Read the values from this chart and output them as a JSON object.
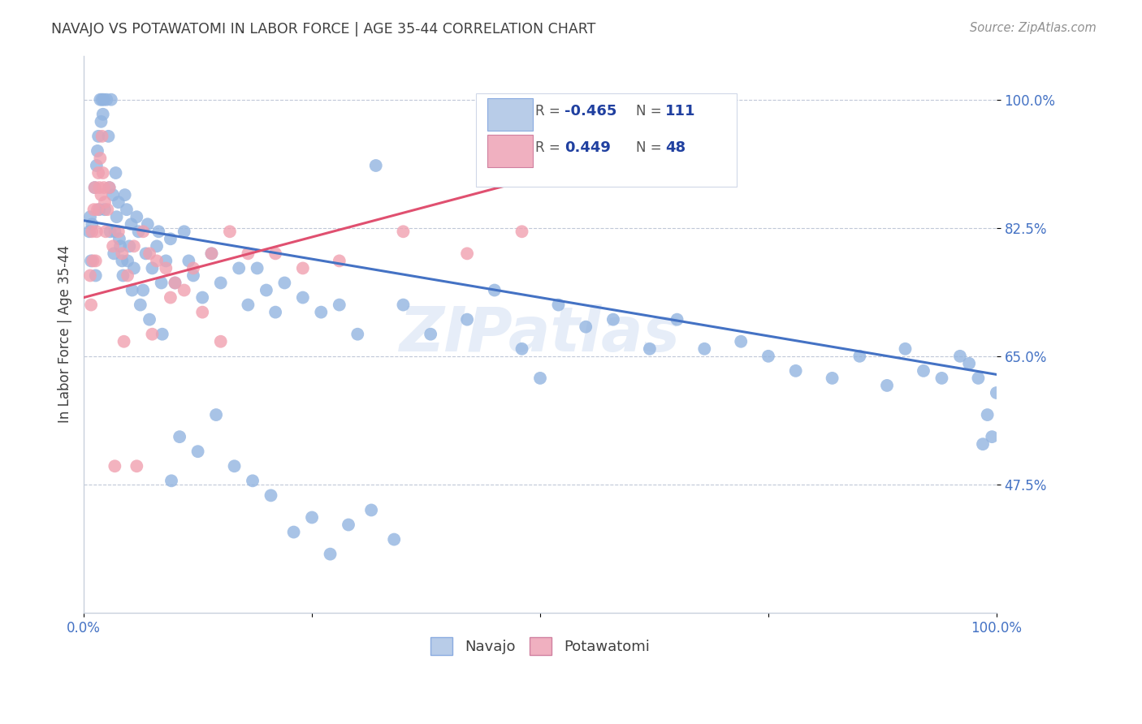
{
  "title": "NAVAJO VS POTAWATOMI IN LABOR FORCE | AGE 35-44 CORRELATION CHART",
  "source": "Source: ZipAtlas.com",
  "ylabel": "In Labor Force | Age 35-44",
  "xlim": [
    0.0,
    1.0
  ],
  "ylim": [
    0.3,
    1.06
  ],
  "ytick_positions": [
    0.475,
    0.65,
    0.825,
    1.0
  ],
  "ytick_labels": [
    "47.5%",
    "65.0%",
    "82.5%",
    "100.0%"
  ],
  "navajo_color": "#92b4e0",
  "potawatomi_color": "#f0a0b0",
  "navajo_line_color": "#4472c4",
  "potawatomi_line_color": "#e05070",
  "title_color": "#404040",
  "axis_label_color": "#4472c4",
  "watermark": "ZIPatlas",
  "navajo_x": [
    0.009,
    0.012,
    0.014,
    0.015,
    0.016,
    0.018,
    0.019,
    0.02,
    0.021,
    0.022,
    0.023,
    0.025,
    0.027,
    0.028,
    0.03,
    0.032,
    0.034,
    0.035,
    0.036,
    0.038,
    0.04,
    0.042,
    0.045,
    0.047,
    0.05,
    0.052,
    0.055,
    0.058,
    0.06,
    0.065,
    0.068,
    0.07,
    0.075,
    0.08,
    0.082,
    0.085,
    0.09,
    0.095,
    0.1,
    0.11,
    0.115,
    0.12,
    0.13,
    0.14,
    0.15,
    0.17,
    0.18,
    0.19,
    0.2,
    0.21,
    0.22,
    0.24,
    0.26,
    0.28,
    0.3,
    0.32,
    0.35,
    0.38,
    0.42,
    0.45,
    0.48,
    0.5,
    0.52,
    0.55,
    0.58,
    0.62,
    0.65,
    0.68,
    0.72,
    0.75,
    0.78,
    0.82,
    0.85,
    0.88,
    0.9,
    0.92,
    0.94,
    0.96,
    0.97,
    0.98,
    0.985,
    0.99,
    0.995,
    1.0,
    0.006,
    0.007,
    0.008,
    0.013,
    0.017,
    0.029,
    0.033,
    0.039,
    0.043,
    0.048,
    0.053,
    0.062,
    0.072,
    0.086,
    0.096,
    0.105,
    0.125,
    0.145,
    0.165,
    0.185,
    0.205,
    0.23,
    0.25,
    0.27,
    0.29,
    0.315,
    0.34
  ],
  "navajo_y": [
    0.83,
    0.88,
    0.91,
    0.93,
    0.95,
    1.0,
    0.97,
    1.0,
    0.98,
    1.0,
    0.85,
    1.0,
    0.95,
    0.88,
    1.0,
    0.87,
    0.82,
    0.9,
    0.84,
    0.86,
    0.8,
    0.78,
    0.87,
    0.85,
    0.8,
    0.83,
    0.77,
    0.84,
    0.82,
    0.74,
    0.79,
    0.83,
    0.77,
    0.8,
    0.82,
    0.75,
    0.78,
    0.81,
    0.75,
    0.82,
    0.78,
    0.76,
    0.73,
    0.79,
    0.75,
    0.77,
    0.72,
    0.77,
    0.74,
    0.71,
    0.75,
    0.73,
    0.71,
    0.72,
    0.68,
    0.91,
    0.72,
    0.68,
    0.7,
    0.74,
    0.66,
    0.62,
    0.72,
    0.69,
    0.7,
    0.66,
    0.7,
    0.66,
    0.67,
    0.65,
    0.63,
    0.62,
    0.65,
    0.61,
    0.66,
    0.63,
    0.62,
    0.65,
    0.64,
    0.62,
    0.53,
    0.57,
    0.54,
    0.6,
    0.82,
    0.84,
    0.78,
    0.76,
    0.85,
    0.82,
    0.79,
    0.81,
    0.76,
    0.78,
    0.74,
    0.72,
    0.7,
    0.68,
    0.48,
    0.54,
    0.52,
    0.57,
    0.5,
    0.48,
    0.46,
    0.41,
    0.43,
    0.38,
    0.42,
    0.44,
    0.4
  ],
  "potawatomi_x": [
    0.007,
    0.009,
    0.011,
    0.012,
    0.013,
    0.014,
    0.015,
    0.016,
    0.017,
    0.018,
    0.019,
    0.02,
    0.021,
    0.022,
    0.024,
    0.026,
    0.028,
    0.032,
    0.038,
    0.042,
    0.048,
    0.055,
    0.065,
    0.072,
    0.08,
    0.09,
    0.1,
    0.11,
    0.12,
    0.14,
    0.16,
    0.18,
    0.21,
    0.24,
    0.28,
    0.35,
    0.42,
    0.48,
    0.008,
    0.01,
    0.023,
    0.034,
    0.044,
    0.058,
    0.075,
    0.095,
    0.13,
    0.15
  ],
  "potawatomi_y": [
    0.76,
    0.82,
    0.85,
    0.88,
    0.78,
    0.82,
    0.85,
    0.9,
    0.88,
    0.92,
    0.87,
    0.95,
    0.9,
    0.88,
    0.82,
    0.85,
    0.88,
    0.8,
    0.82,
    0.79,
    0.76,
    0.8,
    0.82,
    0.79,
    0.78,
    0.77,
    0.75,
    0.74,
    0.77,
    0.79,
    0.82,
    0.79,
    0.79,
    0.77,
    0.78,
    0.82,
    0.79,
    0.82,
    0.72,
    0.78,
    0.86,
    0.5,
    0.67,
    0.5,
    0.68,
    0.73,
    0.71,
    0.67
  ],
  "navajo_line_x": [
    0.0,
    1.0
  ],
  "navajo_line_y": [
    0.835,
    0.625
  ],
  "potawatomi_line_x": [
    0.0,
    0.5
  ],
  "potawatomi_line_y": [
    0.73,
    0.895
  ]
}
